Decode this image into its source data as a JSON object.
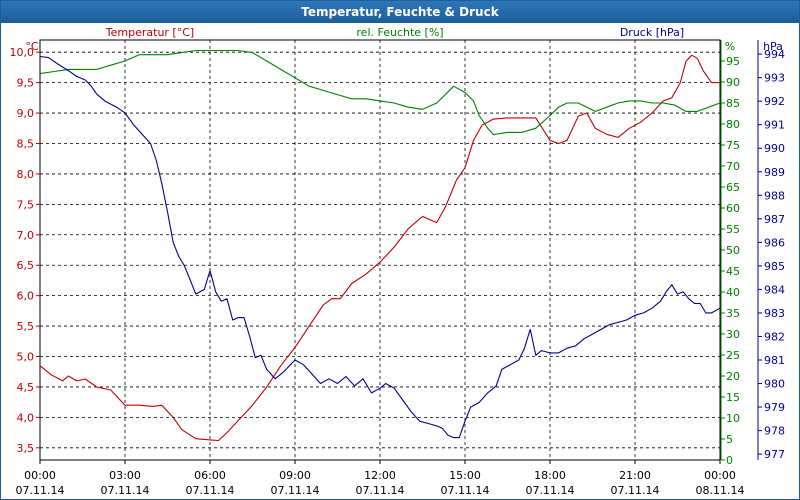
{
  "chart_data": {
    "type": "line",
    "title": "Temperatur, Feuchte & Druck",
    "x_ticks": [
      "00:00",
      "03:00",
      "06:00",
      "09:00",
      "12:00",
      "15:00",
      "18:00",
      "21:00",
      "00:00"
    ],
    "x_dates": [
      "07.11.14",
      "07.11.14",
      "07.11.14",
      "07.11.14",
      "07.11.14",
      "07.11.14",
      "07.11.14",
      "07.11.14",
      "08.11.14"
    ],
    "x_range_hours": [
      0,
      24
    ],
    "grid": true,
    "axes": {
      "temperature": {
        "label": "Temperatur [°C]",
        "unit": "°C",
        "range": [
          3.3,
          10.2
        ],
        "ticks": [
          "3,5",
          "4,0",
          "4,5",
          "5,0",
          "5,5",
          "6,0",
          "6,5",
          "7,0",
          "7,5",
          "8,0",
          "8,5",
          "9,0",
          "9,5",
          "10,0"
        ],
        "tick_values": [
          3.5,
          4.0,
          4.5,
          5.0,
          5.5,
          6.0,
          6.5,
          7.0,
          7.5,
          8.0,
          8.5,
          9.0,
          9.5,
          10.0
        ],
        "color": "#c00000"
      },
      "humidity": {
        "label": "rel. Feuchte [%]",
        "unit": "%",
        "range": [
          0,
          100
        ],
        "ticks": [
          "0",
          "5",
          "10",
          "15",
          "20",
          "25",
          "30",
          "35",
          "40",
          "45",
          "50",
          "55",
          "60",
          "65",
          "70",
          "75",
          "80",
          "85",
          "90",
          "95"
        ],
        "tick_values": [
          0,
          5,
          10,
          15,
          20,
          25,
          30,
          35,
          40,
          45,
          50,
          55,
          60,
          65,
          70,
          75,
          80,
          85,
          90,
          95
        ],
        "color": "#008000"
      },
      "pressure": {
        "label": "Druck [hPa]",
        "unit": "hPa",
        "range": [
          976.75,
          994.6
        ],
        "ticks": [
          "977",
          "978",
          "979",
          "980",
          "981",
          "982",
          "983",
          "984",
          "985",
          "986",
          "987",
          "988",
          "989",
          "990",
          "991",
          "992",
          "993",
          "994"
        ],
        "tick_values": [
          977,
          978,
          979,
          980,
          981,
          982,
          983,
          984,
          985,
          986,
          987,
          988,
          989,
          990,
          991,
          992,
          993,
          994
        ],
        "color": "#000090"
      }
    },
    "series": [
      {
        "name": "Temperatur",
        "axis": "temperature",
        "color": "#c00000",
        "points": [
          [
            0,
            4.85
          ],
          [
            0.4,
            4.7
          ],
          [
            0.8,
            4.6
          ],
          [
            1.0,
            4.68
          ],
          [
            1.3,
            4.6
          ],
          [
            1.6,
            4.63
          ],
          [
            2.0,
            4.5
          ],
          [
            2.5,
            4.45
          ],
          [
            3.0,
            4.2
          ],
          [
            3.5,
            4.2
          ],
          [
            4.0,
            4.18
          ],
          [
            4.3,
            4.2
          ],
          [
            4.7,
            4.0
          ],
          [
            5.0,
            3.8
          ],
          [
            5.5,
            3.65
          ],
          [
            6.0,
            3.63
          ],
          [
            6.3,
            3.62
          ],
          [
            6.6,
            3.75
          ],
          [
            7.0,
            3.95
          ],
          [
            7.5,
            4.2
          ],
          [
            8.0,
            4.5
          ],
          [
            8.5,
            4.85
          ],
          [
            9.0,
            5.15
          ],
          [
            9.5,
            5.5
          ],
          [
            10.0,
            5.85
          ],
          [
            10.3,
            5.95
          ],
          [
            10.6,
            5.95
          ],
          [
            11.0,
            6.2
          ],
          [
            11.5,
            6.35
          ],
          [
            12.0,
            6.55
          ],
          [
            12.5,
            6.8
          ],
          [
            13.0,
            7.1
          ],
          [
            13.5,
            7.3
          ],
          [
            14.0,
            7.2
          ],
          [
            14.3,
            7.45
          ],
          [
            14.7,
            7.9
          ],
          [
            15.0,
            8.1
          ],
          [
            15.3,
            8.55
          ],
          [
            15.6,
            8.8
          ],
          [
            16.0,
            8.9
          ],
          [
            16.5,
            8.92
          ],
          [
            17.0,
            8.92
          ],
          [
            17.5,
            8.92
          ],
          [
            18.0,
            8.55
          ],
          [
            18.3,
            8.5
          ],
          [
            18.6,
            8.55
          ],
          [
            19.0,
            8.95
          ],
          [
            19.3,
            9.0
          ],
          [
            19.6,
            8.75
          ],
          [
            20.0,
            8.65
          ],
          [
            20.4,
            8.6
          ],
          [
            20.8,
            8.75
          ],
          [
            21.2,
            8.85
          ],
          [
            21.6,
            9.0
          ],
          [
            22.0,
            9.2
          ],
          [
            22.3,
            9.25
          ],
          [
            22.6,
            9.5
          ],
          [
            22.8,
            9.85
          ],
          [
            23.0,
            9.95
          ],
          [
            23.2,
            9.9
          ],
          [
            23.4,
            9.7
          ],
          [
            23.7,
            9.5
          ],
          [
            24.0,
            9.5
          ]
        ]
      },
      {
        "name": "rel. Feuchte",
        "axis": "humidity",
        "color": "#008000",
        "points": [
          [
            0,
            92
          ],
          [
            0.5,
            92.5
          ],
          [
            1.0,
            93
          ],
          [
            1.5,
            93
          ],
          [
            2.0,
            93
          ],
          [
            2.5,
            94
          ],
          [
            3.0,
            95
          ],
          [
            3.5,
            96.5
          ],
          [
            4.0,
            96.5
          ],
          [
            4.5,
            96.5
          ],
          [
            5.0,
            97
          ],
          [
            5.5,
            97.5
          ],
          [
            6.0,
            97.5
          ],
          [
            6.5,
            97.5
          ],
          [
            7.0,
            97.5
          ],
          [
            7.5,
            97
          ],
          [
            8.0,
            95
          ],
          [
            8.5,
            93
          ],
          [
            9.0,
            91
          ],
          [
            9.5,
            89
          ],
          [
            10.0,
            88
          ],
          [
            10.5,
            87
          ],
          [
            11.0,
            86
          ],
          [
            11.5,
            86
          ],
          [
            12.0,
            85.5
          ],
          [
            12.5,
            85
          ],
          [
            13.0,
            84
          ],
          [
            13.5,
            83.5
          ],
          [
            14.0,
            85
          ],
          [
            14.3,
            87
          ],
          [
            14.6,
            89
          ],
          [
            15.0,
            87.5
          ],
          [
            15.3,
            85.5
          ],
          [
            15.5,
            82
          ],
          [
            15.8,
            79
          ],
          [
            16.0,
            77.5
          ],
          [
            16.5,
            78
          ],
          [
            17.0,
            78
          ],
          [
            17.5,
            79
          ],
          [
            18.0,
            82
          ],
          [
            18.3,
            84
          ],
          [
            18.6,
            85
          ],
          [
            19.0,
            85
          ],
          [
            19.3,
            84
          ],
          [
            19.6,
            83
          ],
          [
            20.0,
            84
          ],
          [
            20.4,
            85
          ],
          [
            20.8,
            85.5
          ],
          [
            21.2,
            85.5
          ],
          [
            21.6,
            85
          ],
          [
            22.0,
            85
          ],
          [
            22.4,
            84.5
          ],
          [
            22.8,
            83
          ],
          [
            23.2,
            83
          ],
          [
            23.6,
            84
          ],
          [
            24.0,
            85
          ]
        ]
      },
      {
        "name": "Druck",
        "axis": "pressure",
        "color": "#000090",
        "points": [
          [
            0,
            993.9
          ],
          [
            0.3,
            993.85
          ],
          [
            0.6,
            993.6
          ],
          [
            1.0,
            993.3
          ],
          [
            1.3,
            993.05
          ],
          [
            1.6,
            992.9
          ],
          [
            1.8,
            992.65
          ],
          [
            2.0,
            992.3
          ],
          [
            2.3,
            992.0
          ],
          [
            2.7,
            991.75
          ],
          [
            3.0,
            991.5
          ],
          [
            3.3,
            991.0
          ],
          [
            3.6,
            990.6
          ],
          [
            3.9,
            990.2
          ],
          [
            4.1,
            989.5
          ],
          [
            4.3,
            988.5
          ],
          [
            4.5,
            987.3
          ],
          [
            4.7,
            986.0
          ],
          [
            4.9,
            985.4
          ],
          [
            5.1,
            985.0
          ],
          [
            5.3,
            984.4
          ],
          [
            5.5,
            983.8
          ],
          [
            5.8,
            984.0
          ],
          [
            6.0,
            984.8
          ],
          [
            6.2,
            983.9
          ],
          [
            6.4,
            983.5
          ],
          [
            6.6,
            983.6
          ],
          [
            6.8,
            982.7
          ],
          [
            7.0,
            982.8
          ],
          [
            7.2,
            982.8
          ],
          [
            7.4,
            982.0
          ],
          [
            7.6,
            981.1
          ],
          [
            7.8,
            981.2
          ],
          [
            8.0,
            980.6
          ],
          [
            8.3,
            980.2
          ],
          [
            8.6,
            980.5
          ],
          [
            9.0,
            981.0
          ],
          [
            9.3,
            980.8
          ],
          [
            9.6,
            980.4
          ],
          [
            9.9,
            980.0
          ],
          [
            10.2,
            980.2
          ],
          [
            10.5,
            980.0
          ],
          [
            10.8,
            980.3
          ],
          [
            11.1,
            979.9
          ],
          [
            11.4,
            980.2
          ],
          [
            11.7,
            979.6
          ],
          [
            12.0,
            979.8
          ],
          [
            12.2,
            980.0
          ],
          [
            12.5,
            979.8
          ],
          [
            12.8,
            979.3
          ],
          [
            13.1,
            978.8
          ],
          [
            13.4,
            978.4
          ],
          [
            13.7,
            978.3
          ],
          [
            14.0,
            978.2
          ],
          [
            14.2,
            978.1
          ],
          [
            14.4,
            977.8
          ],
          [
            14.6,
            977.7
          ],
          [
            14.8,
            977.7
          ],
          [
            15.0,
            978.4
          ],
          [
            15.2,
            979.0
          ],
          [
            15.5,
            979.2
          ],
          [
            15.8,
            979.6
          ],
          [
            16.1,
            979.9
          ],
          [
            16.3,
            980.6
          ],
          [
            16.6,
            980.8
          ],
          [
            16.9,
            981.0
          ],
          [
            17.1,
            981.5
          ],
          [
            17.3,
            982.3
          ],
          [
            17.5,
            981.2
          ],
          [
            17.7,
            981.4
          ],
          [
            18.0,
            981.3
          ],
          [
            18.3,
            981.3
          ],
          [
            18.6,
            981.5
          ],
          [
            18.9,
            981.6
          ],
          [
            19.2,
            981.9
          ],
          [
            19.5,
            982.1
          ],
          [
            19.8,
            982.3
          ],
          [
            20.1,
            982.5
          ],
          [
            20.4,
            982.6
          ],
          [
            20.7,
            982.7
          ],
          [
            21.0,
            982.9
          ],
          [
            21.3,
            983.0
          ],
          [
            21.6,
            983.2
          ],
          [
            21.9,
            983.5
          ],
          [
            22.1,
            983.9
          ],
          [
            22.3,
            984.2
          ],
          [
            22.5,
            983.8
          ],
          [
            22.7,
            983.9
          ],
          [
            22.9,
            983.6
          ],
          [
            23.1,
            983.4
          ],
          [
            23.3,
            983.4
          ],
          [
            23.5,
            983.0
          ],
          [
            23.7,
            983.0
          ],
          [
            24.0,
            983.2
          ]
        ]
      }
    ]
  }
}
